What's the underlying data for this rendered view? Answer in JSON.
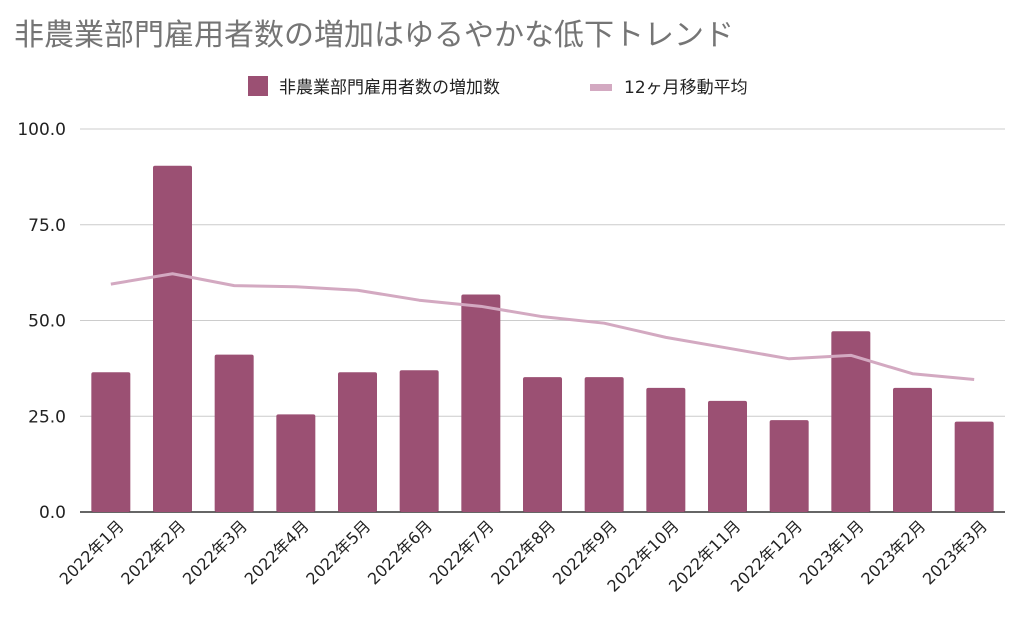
{
  "chart_data": {
    "type": "bar",
    "title": "非農業部門雇用者数の増加はゆるやかな低下トレンド",
    "xlabel": "",
    "ylabel": "",
    "categories": [
      "2022年1月",
      "2022年2月",
      "2022年3月",
      "2022年4月",
      "2022年5月",
      "2022年6月",
      "2022年7月",
      "2022年8月",
      "2022年9月",
      "2022年10月",
      "2022年11月",
      "2022年12月",
      "2023年1月",
      "2023年2月",
      "2023年3月"
    ],
    "series": [
      {
        "name": "非農業部門雇用者数の増加数",
        "type": "bar",
        "color": "#9b5073",
        "values": [
          36.5,
          90.4,
          41.1,
          25.5,
          36.5,
          37.0,
          56.8,
          35.2,
          35.2,
          32.4,
          29.0,
          24.0,
          47.2,
          32.4,
          23.6
        ]
      },
      {
        "name": "12ヶ月移動平均",
        "type": "line",
        "color": "#d3a9c1",
        "values": [
          59.5,
          62.2,
          59.1,
          58.8,
          57.9,
          55.3,
          53.7,
          51.0,
          49.3,
          45.6,
          42.8,
          40.0,
          40.9,
          36.1,
          34.6
        ]
      }
    ],
    "ylim": [
      0,
      100
    ],
    "yticks": [
      "0.0",
      "25.0",
      "50.0",
      "75.0",
      "100.0"
    ],
    "grid": true,
    "legend": "top-center"
  }
}
